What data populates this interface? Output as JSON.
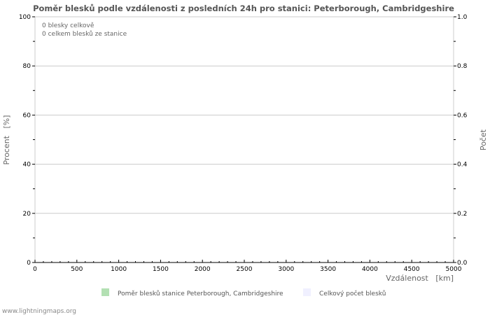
{
  "chart_data": {
    "type": "bar",
    "title": "Poměr blesků podle vzdálenosti z posledních 24h pro stanici: Peterborough, Cambridgeshire",
    "xlabel": "Vzdálenost   [km]",
    "ylabel": "Procent   [%]",
    "y2label": "Počet",
    "xlim": [
      0,
      5000
    ],
    "ylim": [
      0,
      100
    ],
    "y2lim": [
      0,
      1.0
    ],
    "xticks": [
      "0",
      "500",
      "1000",
      "1500",
      "2000",
      "2500",
      "3000",
      "3500",
      "4000",
      "4500",
      "5000"
    ],
    "yticks": [
      "0",
      "20",
      "40",
      "60",
      "80",
      "100"
    ],
    "y2ticks": [
      "0.0",
      "0.2",
      "0.4",
      "0.6",
      "0.8",
      "1.0"
    ],
    "grid": true,
    "series": [
      {
        "name": "Poměr blesků stanice Peterborough, Cambridgeshire",
        "color": "#b3e0b3",
        "values": []
      },
      {
        "name": "Celkový počet blesků",
        "color": "#f0f0ff",
        "values": []
      }
    ],
    "annotations": [
      "0 blesky celkově",
      "0 celkem blesků ze stanice"
    ]
  },
  "footer": "www.lightningmaps.org"
}
